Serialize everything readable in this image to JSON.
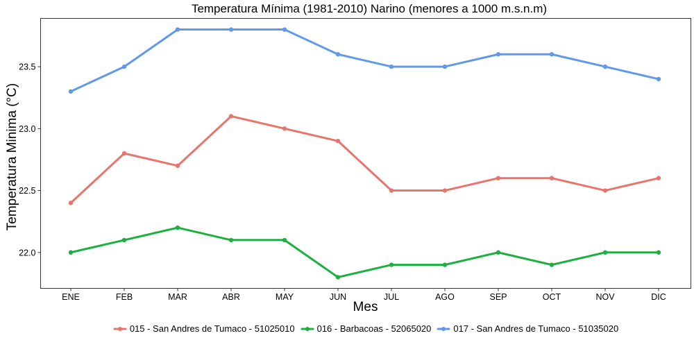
{
  "chart_data": {
    "type": "line",
    "title": "Temperatura Mínima (1981-2010) Narino (menores a 1000 m.s.n.m)",
    "xlabel": "Mes",
    "ylabel": "Temperatura Minima (°C)",
    "categories": [
      "ENE",
      "FEB",
      "MAR",
      "ABR",
      "MAY",
      "JUN",
      "JUL",
      "AGO",
      "SEP",
      "OCT",
      "NOV",
      "DIC"
    ],
    "ylim": [
      21.71,
      23.89
    ],
    "yticks": [
      "22.0",
      "22.5",
      "23.0",
      "23.5"
    ],
    "grid": false,
    "legend_position": "bottom",
    "series": [
      {
        "name": "015 - San Andres de Tumaco - 51025010",
        "color": "#E8756C",
        "values": [
          22.4,
          22.8,
          22.7,
          23.1,
          23.0,
          22.9,
          22.5,
          22.5,
          22.6,
          22.6,
          22.5,
          22.6
        ]
      },
      {
        "name": "016 - Barbacoas - 52065020",
        "color": "#1BB040",
        "values": [
          22.0,
          22.1,
          22.2,
          22.1,
          22.1,
          21.8,
          21.9,
          21.9,
          22.0,
          21.9,
          22.0,
          22.0
        ]
      },
      {
        "name": "017 - San Andres de Tumaco - 51035020",
        "color": "#6199EA",
        "values": [
          23.3,
          23.5,
          23.8,
          23.8,
          23.8,
          23.6,
          23.5,
          23.5,
          23.6,
          23.6,
          23.5,
          23.4
        ]
      }
    ]
  }
}
